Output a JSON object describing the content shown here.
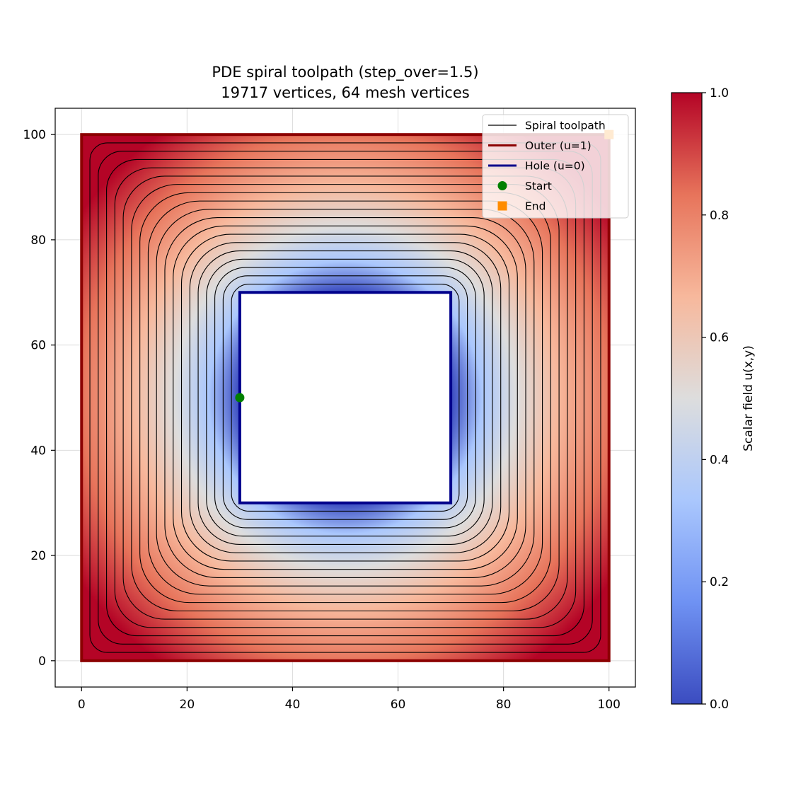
{
  "chart_data": {
    "type": "heatmap",
    "title": "PDE spiral toolpath (step_over=1.5)",
    "subtitle": "19717 vertices, 64 mesh vertices",
    "xlabel": "",
    "ylabel": "",
    "xlim": [
      -5,
      105
    ],
    "ylim": [
      -5,
      105
    ],
    "x_ticks": [
      "0",
      "20",
      "40",
      "60",
      "80",
      "100"
    ],
    "y_ticks": [
      "0",
      "20",
      "40",
      "60",
      "80",
      "100"
    ],
    "grid": true,
    "legend_position": "top-right",
    "outer_boundary": {
      "x0": 0,
      "y0": 0,
      "x1": 100,
      "y1": 100
    },
    "hole_boundary": {
      "x0": 30,
      "y0": 30,
      "x1": 70,
      "y1": 70
    },
    "field_range": [
      0.0,
      1.0
    ],
    "spiral_loops": 18,
    "start_point": {
      "x": 30,
      "y": 50
    },
    "end_point": {
      "x": 100,
      "y": 100
    },
    "colorbar": {
      "label": "Scalar field u(x,y)",
      "range": [
        0.0,
        1.0
      ],
      "ticks": [
        "0.0",
        "0.2",
        "0.4",
        "0.6",
        "0.8",
        "1.0"
      ],
      "colormap": [
        "#3b4cc0",
        "#6f92f3",
        "#aac7fd",
        "#dddddd",
        "#f7b89c",
        "#e7745b",
        "#b40426"
      ]
    },
    "legend": [
      {
        "label": "Spiral toolpath",
        "color": "#000000",
        "kind": "line-thin"
      },
      {
        "label": "Outer (u=1)",
        "color": "#8b0000",
        "kind": "line"
      },
      {
        "label": "Hole (u=0)",
        "color": "#00008b",
        "kind": "line"
      },
      {
        "label": "Start",
        "color": "#008000",
        "kind": "circle"
      },
      {
        "label": "End",
        "color": "#ff8c00",
        "kind": "square"
      }
    ]
  }
}
